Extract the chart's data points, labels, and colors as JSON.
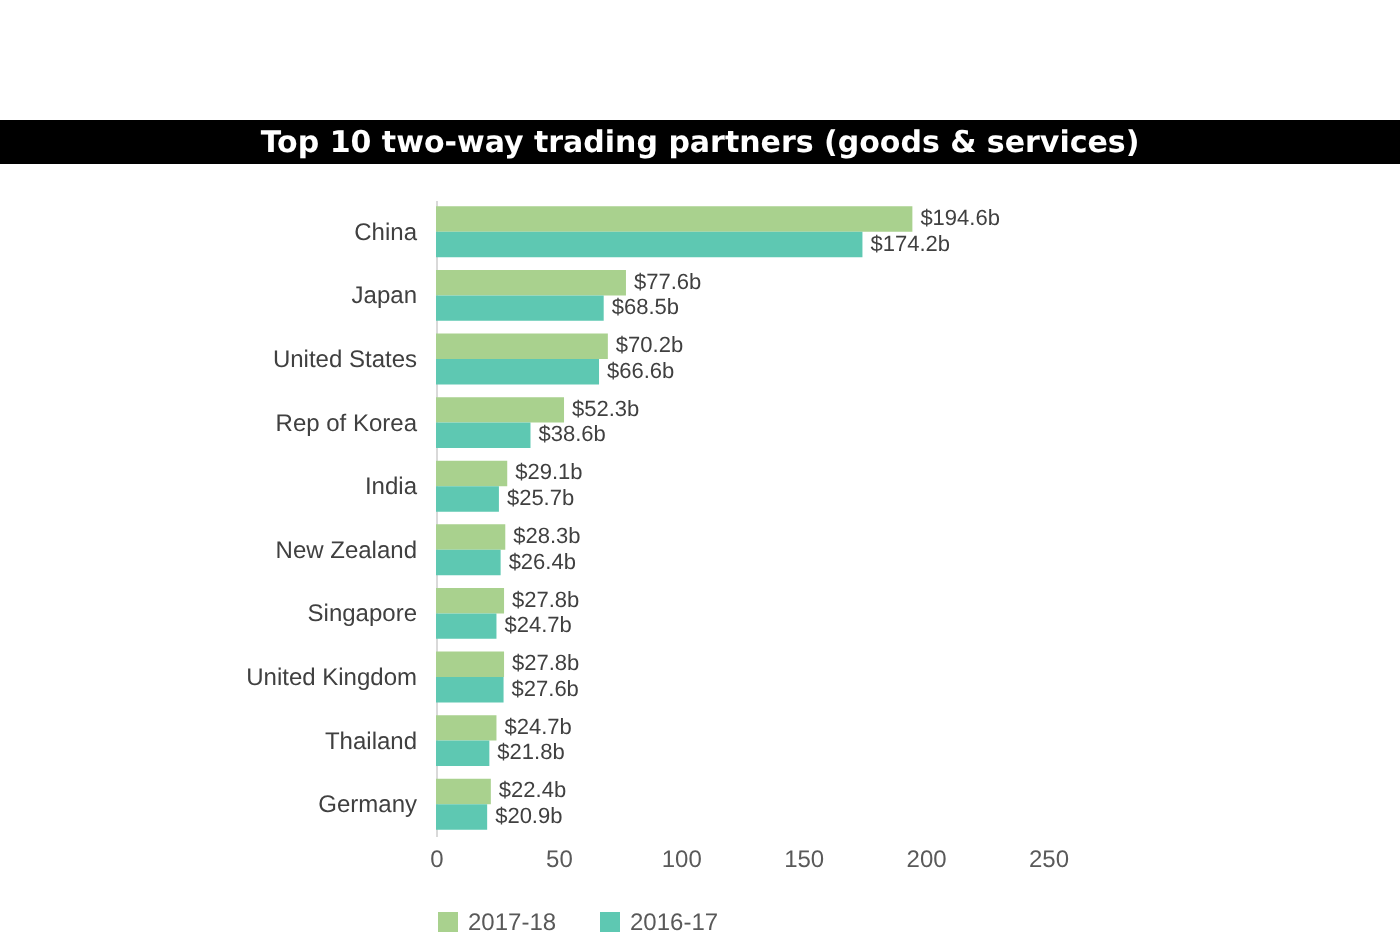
{
  "chart_data": {
    "type": "bar",
    "orientation": "horizontal",
    "title": "Top 10 two-way trading partners (goods & services)",
    "categories": [
      "China",
      "Japan",
      "United States",
      "Rep of Korea",
      "India",
      "New Zealand",
      "Singapore",
      "United Kingdom",
      "Thailand",
      "Germany"
    ],
    "series": [
      {
        "name": "2017-18",
        "color": "#a9d18e",
        "values": [
          194.6,
          77.6,
          70.2,
          52.3,
          29.1,
          28.3,
          27.8,
          27.8,
          24.7,
          22.4
        ],
        "value_labels": [
          "$194.6b",
          "$77.6b",
          "$70.2b",
          "$52.3b",
          "$29.1b",
          "$28.3b",
          "$27.8b",
          "$27.8b",
          "$24.7b",
          "$22.4b"
        ]
      },
      {
        "name": "2016-17",
        "color": "#5ec8b2",
        "values": [
          174.2,
          68.5,
          66.6,
          38.6,
          25.7,
          26.4,
          24.7,
          27.6,
          21.8,
          20.9
        ],
        "value_labels": [
          "$174.2b",
          "$68.5b",
          "$66.6b",
          "$38.6b",
          "$25.7b",
          "$26.4b",
          "$24.7b",
          "$27.6b",
          "$21.8b",
          "$20.9b"
        ]
      }
    ],
    "xlim": [
      0,
      250
    ],
    "xticks": [
      0,
      50,
      100,
      150,
      200,
      250
    ],
    "grid": false,
    "legend": "bottom"
  }
}
